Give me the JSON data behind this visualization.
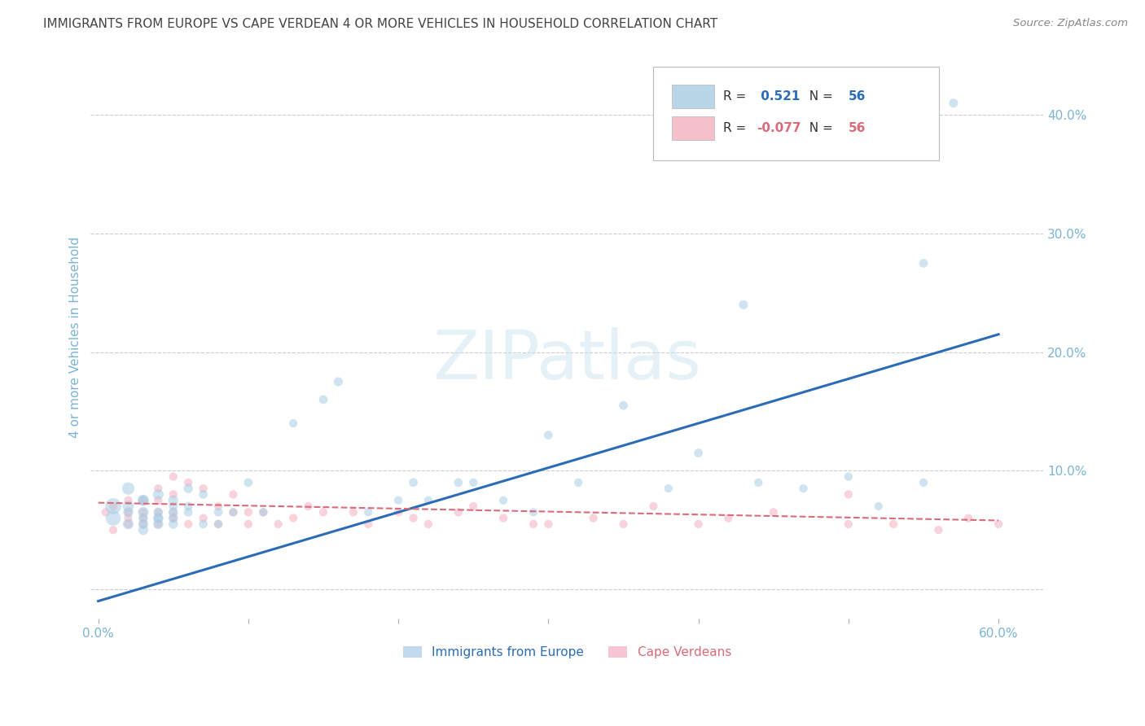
{
  "title": "IMMIGRANTS FROM EUROPE VS CAPE VERDEAN 4 OR MORE VEHICLES IN HOUSEHOLD CORRELATION CHART",
  "source": "Source: ZipAtlas.com",
  "ylabel": "4 or more Vehicles in Household",
  "watermark": "ZIPatlas",
  "blue_label": "Immigrants from Europe",
  "pink_label": "Cape Verdeans",
  "blue_R": 0.521,
  "pink_R": -0.077,
  "N": 56,
  "xlim": [
    -0.005,
    0.63
  ],
  "ylim": [
    -0.025,
    0.45
  ],
  "xticks": [
    0.0,
    0.1,
    0.2,
    0.3,
    0.4,
    0.5,
    0.6
  ],
  "xtick_labels": [
    "0.0%",
    "",
    "",
    "",
    "",
    "",
    "60.0%"
  ],
  "yticks_right": [
    0.0,
    0.1,
    0.2,
    0.3,
    0.4
  ],
  "ytick_right_labels": [
    "",
    "10.0%",
    "20.0%",
    "30.0%",
    "40.0%"
  ],
  "blue_color": "#a8cce4",
  "pink_color": "#f4afc0",
  "blue_line_color": "#2b6cb8",
  "pink_line_color": "#d96b7a",
  "axis_label_color": "#7ab3d4",
  "right_tick_color": "#7ab3d4",
  "legend_R_color": "#333333",
  "blue_scatter_x": [
    0.01,
    0.01,
    0.02,
    0.02,
    0.02,
    0.02,
    0.03,
    0.03,
    0.03,
    0.03,
    0.03,
    0.03,
    0.04,
    0.04,
    0.04,
    0.04,
    0.04,
    0.05,
    0.05,
    0.05,
    0.05,
    0.05,
    0.06,
    0.06,
    0.06,
    0.07,
    0.07,
    0.08,
    0.08,
    0.09,
    0.1,
    0.11,
    0.13,
    0.15,
    0.16,
    0.18,
    0.2,
    0.21,
    0.22,
    0.24,
    0.25,
    0.27,
    0.29,
    0.3,
    0.32,
    0.35,
    0.38,
    0.4,
    0.43,
    0.44,
    0.47,
    0.5,
    0.52,
    0.55,
    0.55,
    0.57
  ],
  "blue_scatter_y": [
    0.07,
    0.06,
    0.085,
    0.07,
    0.055,
    0.065,
    0.075,
    0.065,
    0.055,
    0.05,
    0.075,
    0.06,
    0.08,
    0.06,
    0.055,
    0.065,
    0.06,
    0.075,
    0.065,
    0.055,
    0.06,
    0.07,
    0.085,
    0.07,
    0.065,
    0.08,
    0.055,
    0.065,
    0.055,
    0.065,
    0.09,
    0.065,
    0.14,
    0.16,
    0.175,
    0.065,
    0.075,
    0.09,
    0.075,
    0.09,
    0.09,
    0.075,
    0.065,
    0.13,
    0.09,
    0.155,
    0.085,
    0.115,
    0.24,
    0.09,
    0.085,
    0.095,
    0.07,
    0.275,
    0.09,
    0.41
  ],
  "blue_scatter_size": [
    200,
    180,
    120,
    100,
    90,
    80,
    100,
    90,
    80,
    80,
    80,
    70,
    90,
    80,
    80,
    70,
    70,
    80,
    70,
    70,
    70,
    60,
    70,
    60,
    60,
    60,
    60,
    60,
    55,
    55,
    60,
    55,
    55,
    60,
    65,
    55,
    55,
    60,
    55,
    60,
    55,
    55,
    55,
    60,
    55,
    60,
    55,
    60,
    65,
    55,
    55,
    55,
    55,
    60,
    55,
    65
  ],
  "pink_scatter_x": [
    0.005,
    0.01,
    0.01,
    0.02,
    0.02,
    0.02,
    0.02,
    0.03,
    0.03,
    0.03,
    0.03,
    0.04,
    0.04,
    0.04,
    0.04,
    0.05,
    0.05,
    0.05,
    0.05,
    0.06,
    0.06,
    0.07,
    0.07,
    0.08,
    0.08,
    0.09,
    0.09,
    0.1,
    0.1,
    0.11,
    0.12,
    0.13,
    0.14,
    0.15,
    0.17,
    0.18,
    0.2,
    0.21,
    0.22,
    0.24,
    0.25,
    0.27,
    0.29,
    0.3,
    0.33,
    0.35,
    0.37,
    0.4,
    0.42,
    0.45,
    0.5,
    0.53,
    0.56,
    0.58,
    0.6,
    0.5
  ],
  "pink_scatter_y": [
    0.065,
    0.07,
    0.05,
    0.065,
    0.055,
    0.075,
    0.06,
    0.075,
    0.065,
    0.055,
    0.06,
    0.085,
    0.075,
    0.065,
    0.055,
    0.095,
    0.08,
    0.065,
    0.06,
    0.09,
    0.055,
    0.085,
    0.06,
    0.07,
    0.055,
    0.065,
    0.08,
    0.065,
    0.055,
    0.065,
    0.055,
    0.06,
    0.07,
    0.065,
    0.065,
    0.055,
    0.065,
    0.06,
    0.055,
    0.065,
    0.07,
    0.06,
    0.055,
    0.055,
    0.06,
    0.055,
    0.07,
    0.055,
    0.06,
    0.065,
    0.055,
    0.055,
    0.05,
    0.06,
    0.055,
    0.08
  ],
  "pink_scatter_size": [
    55,
    55,
    55,
    55,
    55,
    55,
    55,
    55,
    55,
    55,
    55,
    55,
    55,
    55,
    55,
    55,
    55,
    55,
    55,
    55,
    55,
    55,
    55,
    55,
    55,
    55,
    55,
    55,
    55,
    55,
    55,
    55,
    55,
    55,
    55,
    55,
    55,
    55,
    55,
    55,
    55,
    55,
    55,
    55,
    55,
    55,
    55,
    55,
    55,
    55,
    55,
    55,
    55,
    55,
    55,
    55
  ],
  "blue_line_x0": 0.0,
  "blue_line_x1": 0.6,
  "blue_line_y0": -0.01,
  "blue_line_y1": 0.215,
  "pink_line_x0": 0.0,
  "pink_line_x1": 0.6,
  "pink_line_y0": 0.073,
  "pink_line_y1": 0.058
}
